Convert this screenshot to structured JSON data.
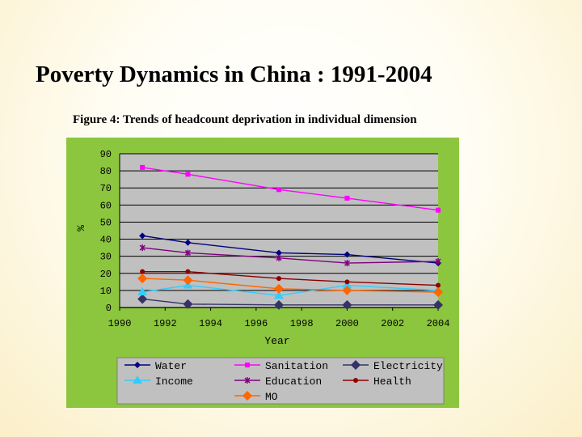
{
  "slide": {
    "title": "Poverty Dynamics in China : 1991-2004",
    "figure_caption": "Figure 4: Trends of headcount deprivation in individual dimension"
  },
  "colors": {
    "frame": "#8cc63e",
    "plot_bg": "#c0c0c0",
    "legend_bg": "#c0c0c0"
  },
  "chart_data": {
    "type": "line",
    "title": "",
    "xlabel": "Year",
    "ylabel": "%",
    "xlim": [
      1990,
      2004
    ],
    "ylim": [
      0,
      90
    ],
    "xticks": [
      1990,
      1992,
      1994,
      1996,
      1998,
      2000,
      2002,
      2004
    ],
    "yticks": [
      0,
      10,
      20,
      30,
      40,
      50,
      60,
      70,
      80,
      90
    ],
    "grid": true,
    "legend_position": "bottom",
    "x": [
      1991,
      1993,
      1997,
      2000,
      2004
    ],
    "series": [
      {
        "name": "Water",
        "values": [
          42,
          38,
          32,
          31,
          26
        ],
        "color": "#000080",
        "marker": "diamond-small"
      },
      {
        "name": "Sanitation",
        "values": [
          82,
          78,
          69,
          64,
          57
        ],
        "color": "#ff00ff",
        "marker": "square"
      },
      {
        "name": "Electricity",
        "values": [
          5,
          2,
          1.5,
          1.5,
          1.5
        ],
        "color": "#333366",
        "marker": "diamond"
      },
      {
        "name": "Income",
        "values": [
          9,
          13,
          7,
          13,
          10
        ],
        "color": "#33ccff",
        "marker": "triangle"
      },
      {
        "name": "Education",
        "values": [
          35,
          32,
          29,
          26,
          27
        ],
        "color": "#800080",
        "marker": "star"
      },
      {
        "name": "Health",
        "values": [
          21,
          21,
          17,
          15,
          13
        ],
        "color": "#8b0000",
        "marker": "circle"
      },
      {
        "name": "MO",
        "values": [
          17,
          16,
          11,
          10,
          9
        ],
        "color": "#ff6600",
        "marker": "diamond"
      }
    ]
  }
}
